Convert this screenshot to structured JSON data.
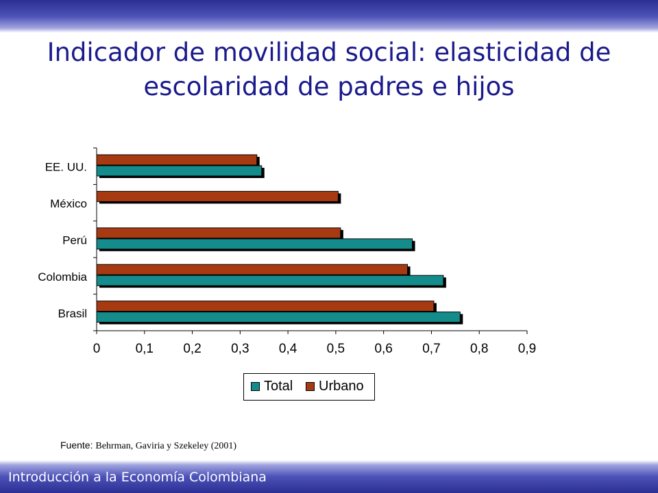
{
  "title": "Indicador de movilidad social: elasticidad de escolaridad de padres e hijos",
  "footer": "Introducción a la Economía Colombiana",
  "source": {
    "label": "Fuente:",
    "text": "Behrman, Gaviria y Szekeley (2001)"
  },
  "colors": {
    "total": "#148c8c",
    "urbano": "#a83a12",
    "band": "#2b2f93",
    "title": "#1a1a8c"
  },
  "chart_data": {
    "type": "bar",
    "orientation": "horizontal",
    "categories": [
      "EE. UU.",
      "México",
      "Perú",
      "Colombia",
      "Brasil"
    ],
    "series": [
      {
        "name": "Total",
        "values": [
          0.345,
          null,
          0.66,
          0.725,
          0.76
        ]
      },
      {
        "name": "Urbano",
        "values": [
          0.335,
          0.505,
          0.51,
          0.65,
          0.705
        ]
      }
    ],
    "ticks": [
      "0",
      "0,1",
      "0,2",
      "0,3",
      "0,4",
      "0,5",
      "0,6",
      "0,7",
      "0,8",
      "0,9"
    ],
    "xlim": [
      0,
      0.9
    ],
    "grid": false,
    "legend_position": "bottom"
  }
}
